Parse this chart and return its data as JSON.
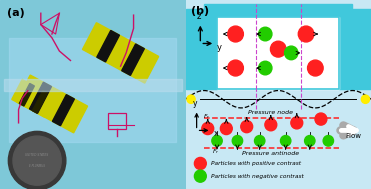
{
  "fig_width": 3.71,
  "fig_height": 1.89,
  "dpi": 100,
  "bg_color": "#ffffff",
  "panel_a_label": "(a)",
  "panel_b_label": "(b)",
  "panel_b_bg": "#C8E8F4",
  "cyan_color": "#40C8DC",
  "white_color": "#ffffff",
  "pressure_node_text": "Pressure node",
  "pressure_antinode_text": "Pressure antinode",
  "flow_text": "Flow",
  "legend_red_text": "Particles with positive contrast",
  "legend_green_text": "Particles with negative contrast",
  "red_color": "#FF2020",
  "green_color": "#22CC00",
  "yellow_color": "#FFEE00",
  "dashed_purple": "#CC44CC",
  "wire_color": "#CC1166",
  "idt_color": "#CCCC00",
  "coin_color": "#404040",
  "photo_bg": "#7EC8D8"
}
